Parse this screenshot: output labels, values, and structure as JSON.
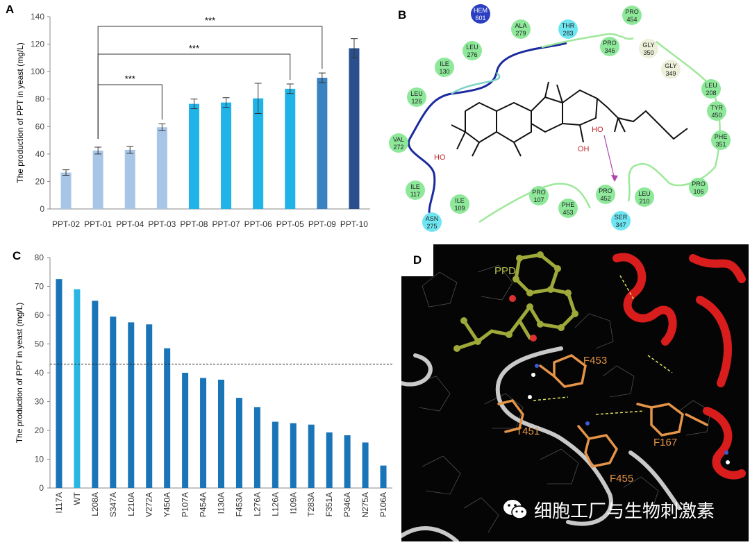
{
  "colors": {
    "bar_light": "#a7c5e6",
    "bar_mid": "#1fb3e8",
    "bar_dark1": "#3b82c1",
    "bar_dark2": "#2a4f8c",
    "bar_c": "#1a75b8",
    "bar_c_wt": "#2ab6e4",
    "residue_green": "#8ee89a",
    "residue_cyan": "#6ee6f2",
    "residue_gray": "#e9ecd6",
    "helix_red": "#d91c1c",
    "ligand_olive": "#9ea93a",
    "residue_orange": "#e59448"
  },
  "panelA": {
    "label": "A",
    "chart_data": {
      "type": "bar",
      "categories": [
        "PPT-02",
        "PPT-01",
        "PPT-04",
        "PPT-03",
        "PPT-08",
        "PPT-07",
        "PPT-06",
        "PPT-05",
        "PPT-09",
        "PPT-10"
      ],
      "values": [
        26.5,
        42.5,
        43,
        59.5,
        76.5,
        77.5,
        80.5,
        87.5,
        95.5,
        117
      ],
      "errors": [
        2,
        2.5,
        2.5,
        2.5,
        3.5,
        3.5,
        11,
        3.5,
        3.5,
        7
      ],
      "colors": [
        "#a7c5e6",
        "#a7c5e6",
        "#a7c5e6",
        "#a7c5e6",
        "#1fb3e8",
        "#1fb3e8",
        "#1fb3e8",
        "#1fb3e8",
        "#3b82c1",
        "#2a4f8c"
      ],
      "ylabel": "The production of PPT in yeast (mg/L)",
      "ylim": [
        0,
        140
      ],
      "yticks": [
        0,
        20,
        40,
        60,
        80,
        100,
        120,
        140
      ],
      "significance": [
        {
          "from": "PPT-01",
          "to": "PPT-03",
          "label": "***"
        },
        {
          "from": "PPT-01",
          "to": "PPT-05",
          "label": "***"
        },
        {
          "from": "PPT-01",
          "to": "PPT-09",
          "label": "***"
        }
      ]
    }
  },
  "panelB": {
    "label": "B",
    "residues": [
      {
        "name": "HEM",
        "num": "601",
        "type": "blue"
      },
      {
        "name": "ALA",
        "num": "279",
        "type": "green"
      },
      {
        "name": "THR",
        "num": "283",
        "type": "cyan"
      },
      {
        "name": "PRO",
        "num": "454",
        "type": "green"
      },
      {
        "name": "LEU",
        "num": "276",
        "type": "green"
      },
      {
        "name": "PRO",
        "num": "346",
        "type": "green"
      },
      {
        "name": "GLY",
        "num": "350",
        "type": "gray"
      },
      {
        "name": "ILE",
        "num": "130",
        "type": "green"
      },
      {
        "name": "GLY",
        "num": "349",
        "type": "gray"
      },
      {
        "name": "LEU",
        "num": "126",
        "type": "green"
      },
      {
        "name": "LEU",
        "num": "208",
        "type": "green"
      },
      {
        "name": "TYR",
        "num": "450",
        "type": "green"
      },
      {
        "name": "VAL",
        "num": "272",
        "type": "green"
      },
      {
        "name": "PHE",
        "num": "351",
        "type": "green"
      },
      {
        "name": "ILE",
        "num": "117",
        "type": "green"
      },
      {
        "name": "ILE",
        "num": "109",
        "type": "green"
      },
      {
        "name": "PRO",
        "num": "107",
        "type": "green"
      },
      {
        "name": "PHE",
        "num": "453",
        "type": "green"
      },
      {
        "name": "PRO",
        "num": "452",
        "type": "green"
      },
      {
        "name": "LEU",
        "num": "210",
        "type": "green"
      },
      {
        "name": "PRO",
        "num": "106",
        "type": "green"
      },
      {
        "name": "ASN",
        "num": "275",
        "type": "cyan"
      },
      {
        "name": "SER",
        "num": "347",
        "type": "cyan"
      }
    ],
    "ho_labels": [
      "HO",
      "HO",
      "OH"
    ]
  },
  "panelC": {
    "label": "C",
    "chart_data": {
      "type": "bar",
      "categories": [
        "I117A",
        "WT",
        "L208A",
        "S347A",
        "L210A",
        "V272A",
        "Y450A",
        "P107A",
        "P454A",
        "I130A",
        "F453A",
        "L276A",
        "L126A",
        "I109A",
        "T283A",
        "F351A",
        "P346A",
        "N275A",
        "P106A"
      ],
      "values": [
        72.5,
        69,
        65,
        59.5,
        57.5,
        56.8,
        48.5,
        40,
        38.2,
        37.6,
        31.3,
        28.1,
        23,
        22.5,
        22,
        19.3,
        18.3,
        15.8,
        7.8
      ],
      "highlight": "WT",
      "ylabel": "The production of PPT in yeast (mg/L)",
      "ylim": [
        0,
        80
      ],
      "yticks": [
        0,
        10,
        20,
        30,
        40,
        50,
        60,
        70,
        80
      ],
      "reference_line": 43
    }
  },
  "panelD": {
    "label": "D",
    "annotations": [
      "PPD",
      "F453",
      "T451",
      "F167",
      "F455"
    ],
    "watermark": "细胞工厂与生物刺激素",
    "watermark_icon": "wechat-icon"
  }
}
